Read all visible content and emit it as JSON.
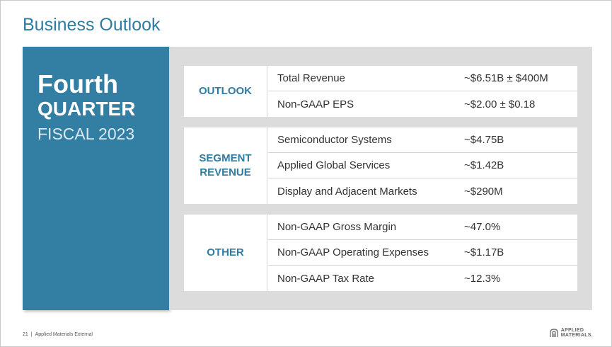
{
  "title": "Business Outlook",
  "period": {
    "line1": "Fourth",
    "line2": "QUARTER",
    "line3": "FISCAL 2023"
  },
  "groups": [
    {
      "label_lines": [
        "OUTLOOK"
      ],
      "rows": [
        {
          "item": "Total Revenue",
          "value": "~$6.51B ± $400M"
        },
        {
          "item": "Non-GAAP EPS",
          "value": "~$2.00 ± $0.18"
        }
      ]
    },
    {
      "label_lines": [
        "SEGMENT",
        "REVENUE"
      ],
      "rows": [
        {
          "item": "Semiconductor Systems",
          "value": "~$4.75B"
        },
        {
          "item": "Applied Global Services",
          "value": "~$1.42B"
        },
        {
          "item": "Display and Adjacent Markets",
          "value": "~$290M"
        }
      ]
    },
    {
      "label_lines": [
        "OTHER"
      ],
      "rows": [
        {
          "item": "Non-GAAP Gross Margin",
          "value": "~47.0%"
        },
        {
          "item": "Non-GAAP Operating Expenses",
          "value": "~$1.17B"
        },
        {
          "item": "Non-GAAP Tax Rate",
          "value": "~12.3%"
        }
      ]
    }
  ],
  "footer": {
    "page_number": "21",
    "separator": "|",
    "classification": "Applied Materials External"
  },
  "logo": {
    "line1": "APPLIED",
    "line2": "MATERIALS."
  },
  "colors": {
    "accent": "#2f7ca3",
    "panel": "#337ea3",
    "background_band": "#dcdcdc"
  }
}
